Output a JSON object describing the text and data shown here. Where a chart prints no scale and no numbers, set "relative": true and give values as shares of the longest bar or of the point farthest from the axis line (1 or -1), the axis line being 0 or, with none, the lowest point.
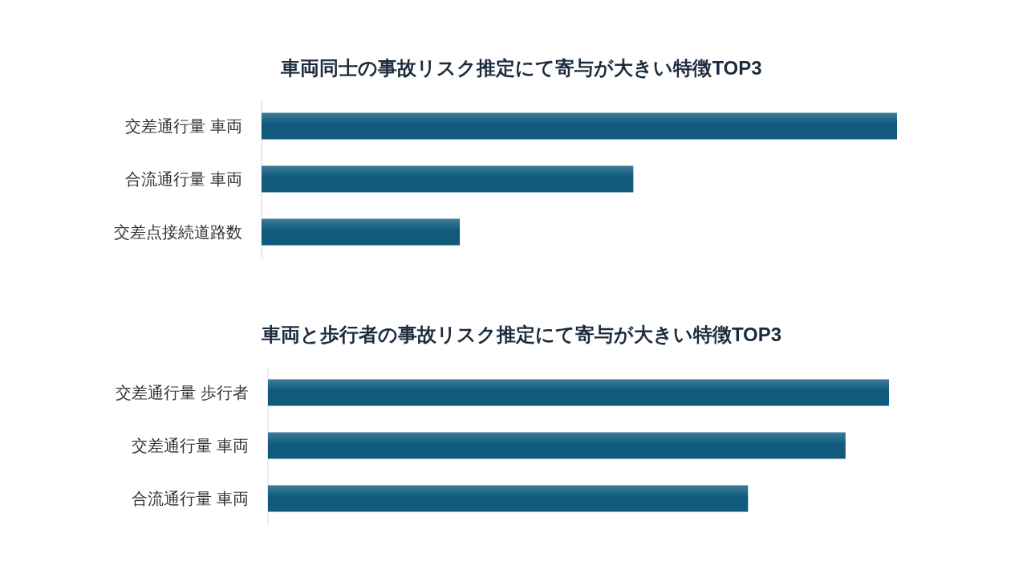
{
  "chart_data": [
    {
      "type": "bar",
      "orientation": "horizontal",
      "relative": true,
      "title": "車両同士の事故リスク推定にて寄与が大きい特徴TOP3",
      "categories": [
        "交差通行量 車両",
        "合流通行量 車両",
        "交差点接続道路数"
      ],
      "values": [
        1,
        0.585,
        0.312
      ],
      "color": "#0f5a7d"
    },
    {
      "type": "bar",
      "orientation": "horizontal",
      "relative": true,
      "title": "車両と歩行者の事故リスク推定にて寄与が大きい特徴TOP3",
      "categories": [
        "交差通行量 歩行者",
        "交差通行量 車両",
        "合流通行量 車両"
      ],
      "values": [
        1,
        0.93,
        0.773
      ],
      "color": "#0f5a7d"
    }
  ]
}
